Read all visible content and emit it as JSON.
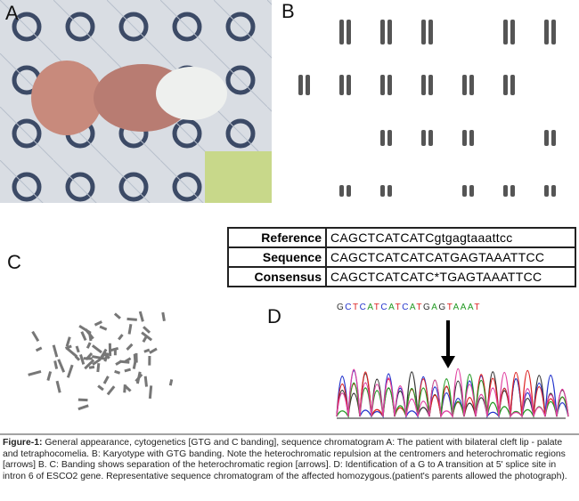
{
  "panels": {
    "a": "A",
    "b": "B",
    "c": "C",
    "d": "D"
  },
  "table": {
    "rows": [
      [
        "Reference",
        "CAGCTCATCATCgtgagtaaattcc"
      ],
      [
        "Sequence",
        "CAGCTCATCATCATGAGTAAATTCC"
      ],
      [
        "Consensus",
        "CAGCTCATCATC*TGAGTAAATTCC"
      ]
    ]
  },
  "chromatogram": {
    "bases": [
      "G",
      "C",
      "T",
      "C",
      "A",
      "T",
      "C",
      "A",
      "T",
      "C",
      "A",
      "T",
      "G",
      "A",
      "G",
      "T",
      "A",
      "A",
      "A",
      "T"
    ]
  },
  "caption": {
    "label": "Figure-1:",
    "text": "General appearance, cytogenetics [GTG and C banding], sequence chromatogram A: The patient with bilateral cleft lip - palate and tetraphocomelia. B: Karyotype with GTG banding. Note the heterochromatic repulsion at the centromers and heterochromatic regions [arrows] B. C: Banding shows separation of the heterochromatic region [arrows]. D: Identification of a G to A transition at 5' splice site in intron 6 of ESCO2 gene. Representative sequence chromatogram of the affected homozygous.(patient's parents allowed the photograph)."
  }
}
